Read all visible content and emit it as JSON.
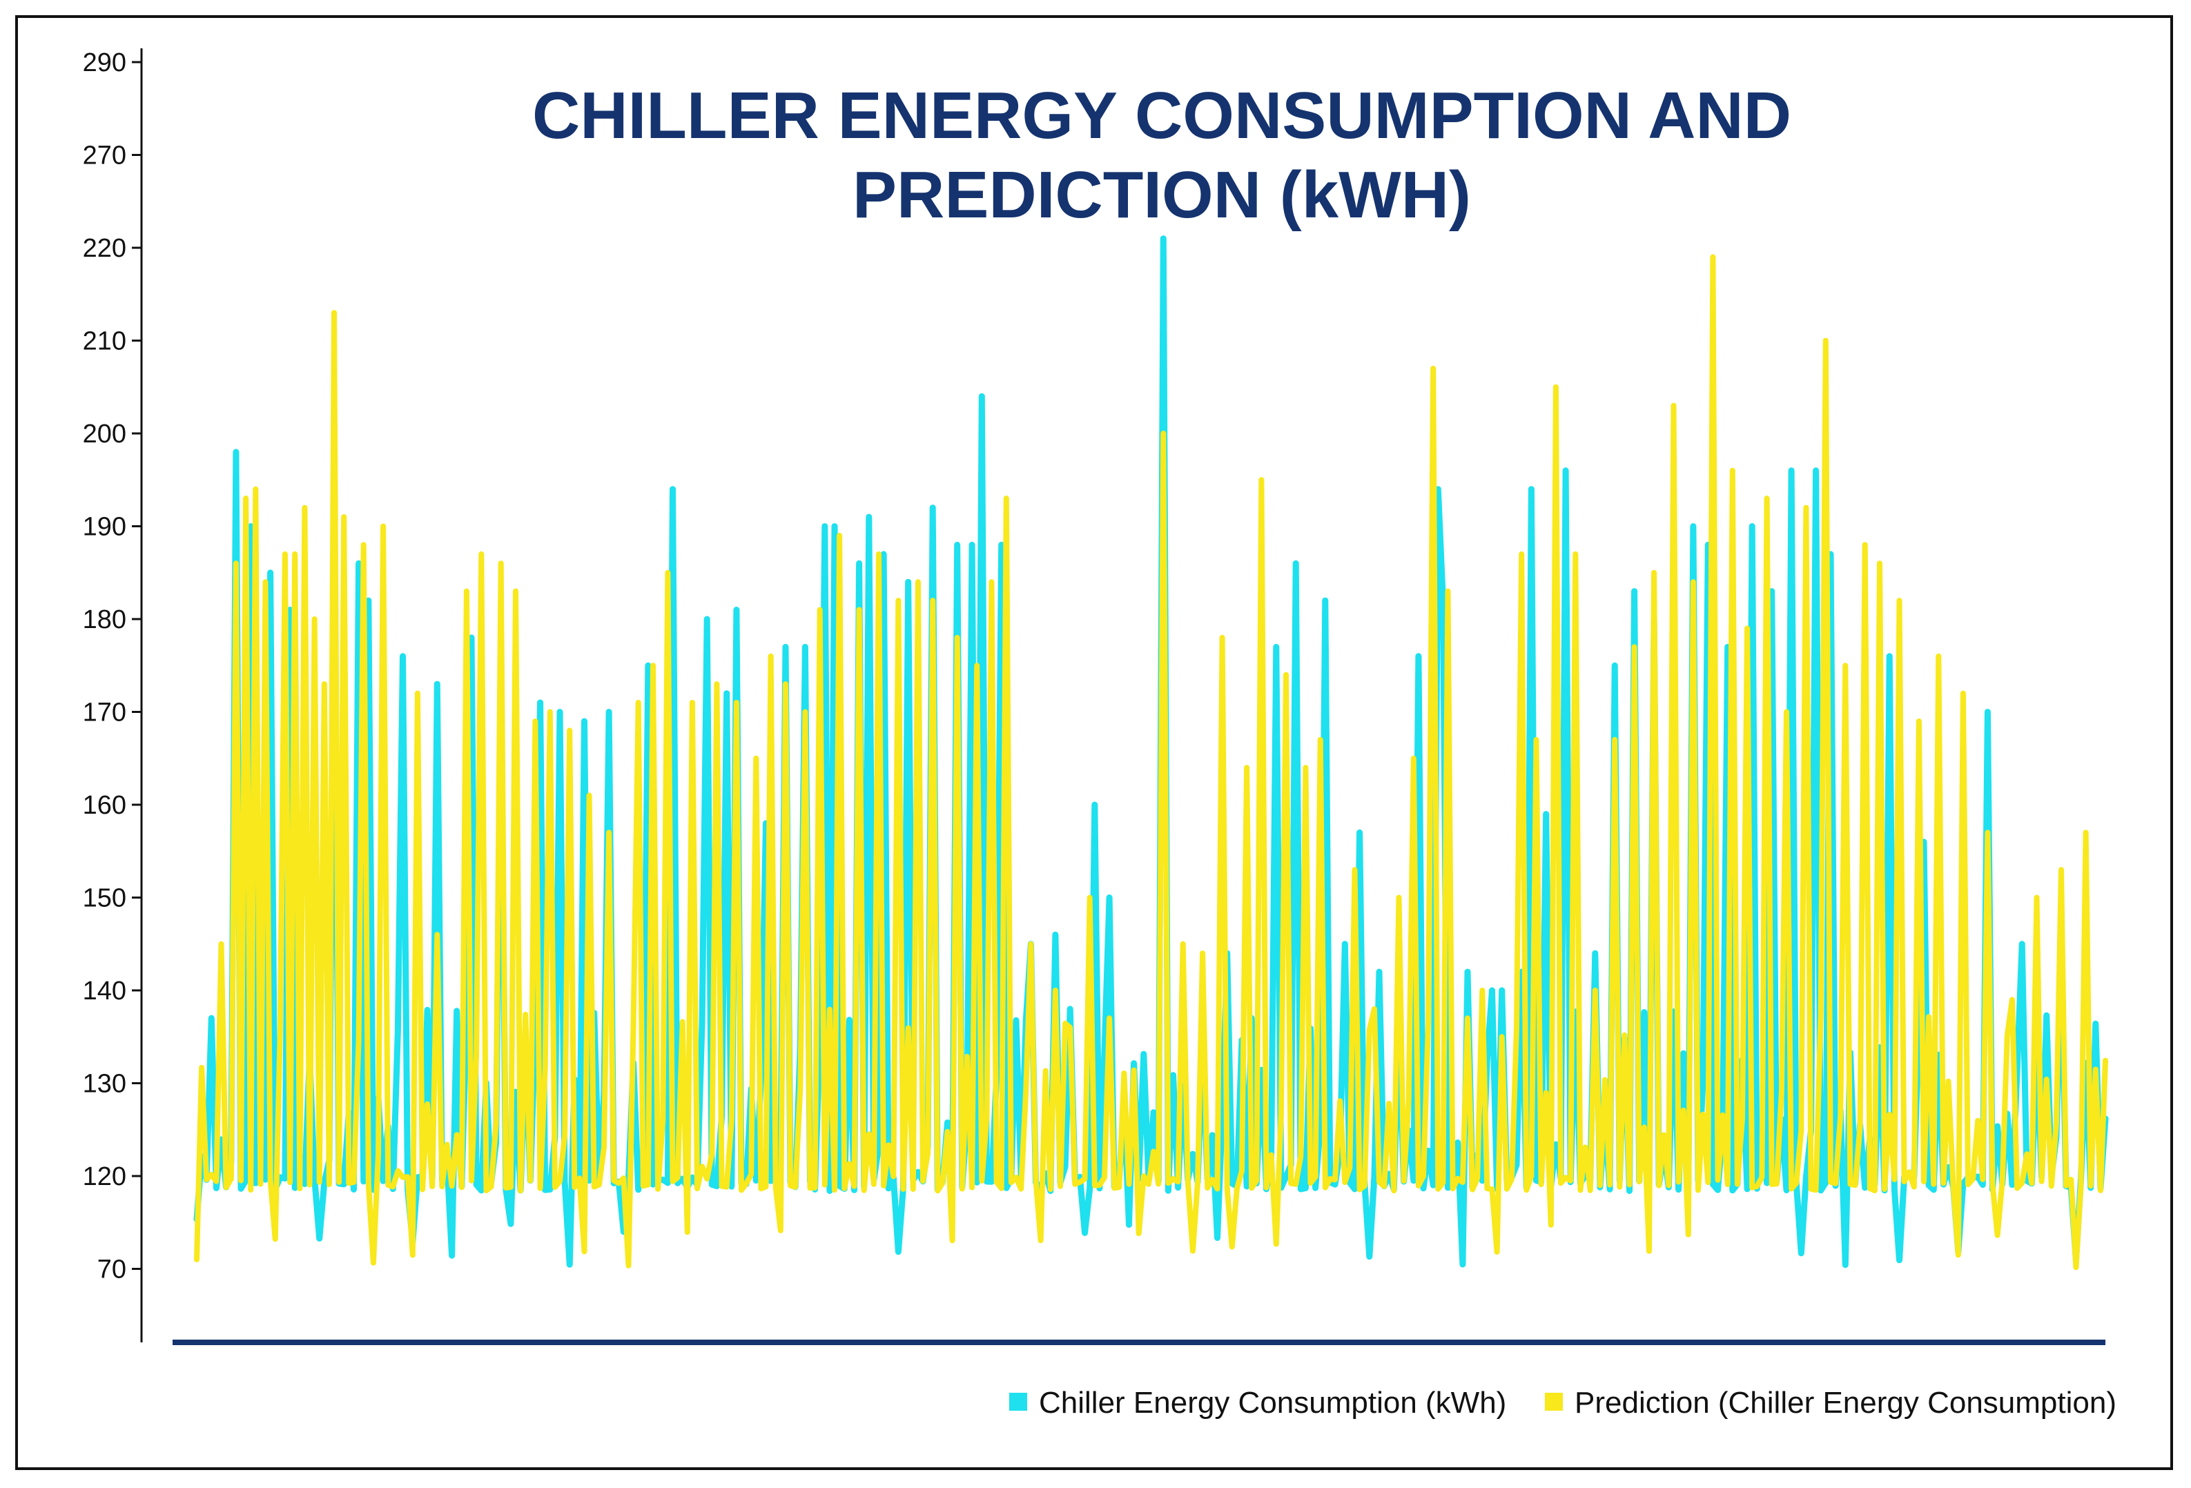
{
  "chart_data": {
    "type": "line",
    "title_lines": [
      "CHILLER ENERGY CONSUMPTION AND",
      "PREDICTION (kWH)"
    ],
    "ytick_labels": [
      "290",
      "270",
      "220",
      "210",
      "200",
      "190",
      "180",
      "170",
      "160",
      "150",
      "140",
      "130",
      "120",
      "70"
    ],
    "n_points": 390,
    "series": [
      {
        "name": "Chiller Energy Consumption (kWh)",
        "color": "#1ee0ee",
        "peaks": [
          [
            3,
            137
          ],
          [
            8,
            198
          ],
          [
            11,
            190
          ],
          [
            15,
            185
          ],
          [
            19,
            181
          ],
          [
            28,
            187
          ],
          [
            33,
            186
          ],
          [
            35,
            182
          ],
          [
            42,
            176
          ],
          [
            49,
            173
          ],
          [
            56,
            178
          ],
          [
            62,
            175
          ],
          [
            70,
            171
          ],
          [
            74,
            170
          ],
          [
            79,
            169
          ],
          [
            84,
            170
          ],
          [
            92,
            175
          ],
          [
            97,
            194
          ],
          [
            104,
            180
          ],
          [
            108,
            172
          ],
          [
            110,
            181
          ],
          [
            116,
            158
          ],
          [
            120,
            177
          ],
          [
            124,
            177
          ],
          [
            128,
            190
          ],
          [
            130,
            190
          ],
          [
            135,
            186
          ],
          [
            137,
            191
          ],
          [
            140,
            187
          ],
          [
            145,
            184
          ],
          [
            150,
            192
          ],
          [
            155,
            188
          ],
          [
            158,
            188
          ],
          [
            160,
            204
          ],
          [
            164,
            188
          ],
          [
            170,
            145
          ],
          [
            175,
            146
          ],
          [
            178,
            138
          ],
          [
            183,
            160
          ],
          [
            186,
            150
          ],
          [
            197,
            225
          ],
          [
            210,
            144
          ],
          [
            215,
            137
          ],
          [
            220,
            177
          ],
          [
            224,
            186
          ],
          [
            230,
            182
          ],
          [
            234,
            145
          ],
          [
            237,
            157
          ],
          [
            241,
            142
          ],
          [
            249,
            176
          ],
          [
            253,
            194
          ],
          [
            254,
            182
          ],
          [
            259,
            142
          ],
          [
            264,
            140
          ],
          [
            266,
            140
          ],
          [
            270,
            142
          ],
          [
            272,
            194
          ],
          [
            275,
            159
          ],
          [
            279,
            196
          ],
          [
            285,
            144
          ],
          [
            289,
            175
          ],
          [
            293,
            183
          ],
          [
            297,
            180
          ],
          [
            305,
            190
          ],
          [
            308,
            188
          ],
          [
            312,
            177
          ],
          [
            317,
            190
          ],
          [
            321,
            183
          ],
          [
            325,
            196
          ],
          [
            330,
            196
          ],
          [
            333,
            187
          ],
          [
            345,
            176
          ],
          [
            352,
            156
          ],
          [
            365,
            170
          ],
          [
            372,
            145
          ],
          [
            380,
            144
          ]
        ]
      },
      {
        "name": "Prediction (Chiller Energy Consumption)",
        "color": "#f8e81c",
        "peaks": [
          [
            5,
            145
          ],
          [
            8,
            186
          ],
          [
            10,
            193
          ],
          [
            12,
            194
          ],
          [
            14,
            184
          ],
          [
            18,
            187
          ],
          [
            20,
            187
          ],
          [
            22,
            192
          ],
          [
            24,
            180
          ],
          [
            26,
            173
          ],
          [
            28,
            213
          ],
          [
            30,
            191
          ],
          [
            34,
            188
          ],
          [
            38,
            190
          ],
          [
            45,
            172
          ],
          [
            49,
            146
          ],
          [
            55,
            183
          ],
          [
            58,
            187
          ],
          [
            62,
            186
          ],
          [
            65,
            183
          ],
          [
            69,
            169
          ],
          [
            72,
            170
          ],
          [
            76,
            168
          ],
          [
            80,
            161
          ],
          [
            84,
            157
          ],
          [
            90,
            171
          ],
          [
            93,
            175
          ],
          [
            96,
            185
          ],
          [
            101,
            171
          ],
          [
            106,
            173
          ],
          [
            110,
            171
          ],
          [
            114,
            165
          ],
          [
            117,
            176
          ],
          [
            120,
            173
          ],
          [
            124,
            170
          ],
          [
            127,
            181
          ],
          [
            131,
            189
          ],
          [
            135,
            181
          ],
          [
            139,
            187
          ],
          [
            143,
            182
          ],
          [
            147,
            184
          ],
          [
            150,
            182
          ],
          [
            155,
            178
          ],
          [
            159,
            175
          ],
          [
            162,
            184
          ],
          [
            165,
            193
          ],
          [
            170,
            145
          ],
          [
            175,
            140
          ],
          [
            178,
            136
          ],
          [
            182,
            150
          ],
          [
            186,
            137
          ],
          [
            197,
            200
          ],
          [
            201,
            145
          ],
          [
            205,
            144
          ],
          [
            209,
            178
          ],
          [
            214,
            164
          ],
          [
            217,
            195
          ],
          [
            222,
            174
          ],
          [
            226,
            164
          ],
          [
            229,
            167
          ],
          [
            236,
            153
          ],
          [
            240,
            138
          ],
          [
            245,
            150
          ],
          [
            248,
            165
          ],
          [
            252,
            207
          ],
          [
            255,
            183
          ],
          [
            259,
            137
          ],
          [
            262,
            140
          ],
          [
            266,
            135
          ],
          [
            270,
            187
          ],
          [
            273,
            167
          ],
          [
            277,
            205
          ],
          [
            281,
            187
          ],
          [
            285,
            140
          ],
          [
            289,
            167
          ],
          [
            293,
            177
          ],
          [
            297,
            185
          ],
          [
            301,
            203
          ],
          [
            305,
            184
          ],
          [
            309,
            219
          ],
          [
            313,
            196
          ],
          [
            316,
            179
          ],
          [
            320,
            193
          ],
          [
            324,
            170
          ],
          [
            328,
            192
          ],
          [
            332,
            210
          ],
          [
            336,
            175
          ],
          [
            340,
            188
          ],
          [
            343,
            186
          ],
          [
            347,
            182
          ],
          [
            351,
            169
          ],
          [
            355,
            176
          ],
          [
            360,
            172
          ],
          [
            365,
            157
          ],
          [
            370,
            139
          ],
          [
            375,
            150
          ],
          [
            380,
            153
          ],
          [
            385,
            157
          ]
        ]
      }
    ],
    "base_range": [
      112,
      132
    ],
    "dip_value": 70,
    "legend_position": "bottom-right",
    "legend": [
      "Chiller Energy Consumption (kWh)",
      "Prediction (Chiller Energy Consumption)"
    ]
  }
}
